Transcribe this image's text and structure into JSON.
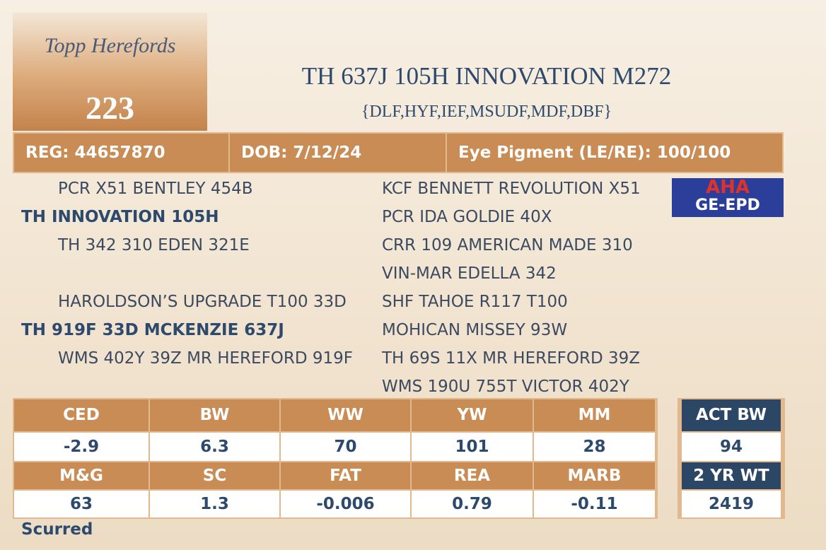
{
  "logo": "Topp Herefords",
  "lot": "223",
  "title": "TH 637J 105H INNOVATION M272",
  "subtitle": "{DLF,HYF,IEF,MSUDF,MDF,DBF}",
  "info": [
    "REG: 44657870",
    "DOB: 7/12/24",
    "Eye Pigment (LE/RE): 100/100"
  ],
  "pedigree": {
    "sire_group": {
      "sire": "PCR X51 BENTLEY 454B",
      "name": "TH INNOVATION 105H",
      "dam": "TH 342 310 EDEN 321E"
    },
    "dam_group": {
      "sire": "HAROLDSON’S UPGRADE T100 33D",
      "name": "TH 919F 33D MCKENZIE 637J",
      "dam": "WMS 402Y 39Z MR HEREFORD 919F"
    },
    "right": [
      "KCF BENNETT REVOLUTION X51",
      "PCR IDA GOLDIE 40X",
      "CRR 109 AMERICAN MADE 310",
      "VIN-MAR EDELLA 342",
      "SHF TAHOE R117 T100",
      "MOHICAN MISSEY 93W",
      "TH 69S 11X MR HEREFORD 39Z",
      "WMS 190U 755T VICTOR 402Y"
    ]
  },
  "badge": {
    "top": "AHA",
    "bottom": "GE-EPD"
  },
  "epd": [
    {
      "headers": [
        "CED",
        "BW",
        "WW",
        "YW",
        "MM"
      ],
      "values": [
        -2.9,
        6.3,
        70,
        101,
        28
      ]
    },
    {
      "headers": [
        "M&G",
        "SC",
        "FAT",
        "REA",
        "MARB"
      ],
      "values": [
        63,
        1.3,
        -0.006,
        0.79,
        -0.11
      ]
    }
  ],
  "side": [
    {
      "header": "ACT BW",
      "value": 94
    },
    {
      "header": "2 YR WT",
      "value": 2419
    }
  ],
  "footer": "Scurred"
}
